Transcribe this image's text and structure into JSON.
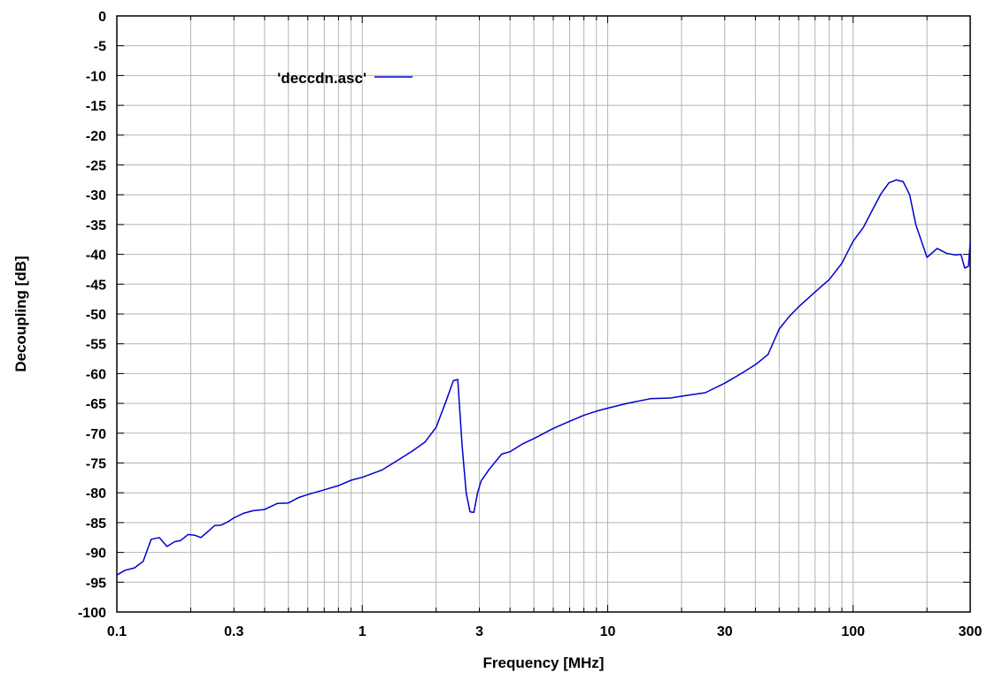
{
  "chart_data": {
    "type": "line",
    "title": "",
    "xlabel": "Frequency [MHz]",
    "ylabel": "Decoupling [dB]",
    "x_scale": "log",
    "xlim": [
      0.1,
      300
    ],
    "ylim": [
      -100,
      0
    ],
    "grid": true,
    "legend_position": "top-left",
    "x_ticks": [
      0.1,
      0.3,
      1,
      3,
      10,
      30,
      100,
      300
    ],
    "x_tick_labels": [
      "0.1",
      "0.3",
      "1",
      "3",
      "10",
      "30",
      "100",
      "300"
    ],
    "y_ticks": [
      0,
      -5,
      -10,
      -15,
      -20,
      -25,
      -30,
      -35,
      -40,
      -45,
      -50,
      -55,
      -60,
      -65,
      -70,
      -75,
      -80,
      -85,
      -90,
      -95,
      -100
    ],
    "y_tick_labels": [
      "0",
      "-5",
      "-10",
      "-15",
      "-20",
      "-25",
      "-30",
      "-35",
      "-40",
      "-45",
      "-50",
      "-55",
      "-60",
      "-65",
      "-70",
      "-75",
      "-80",
      "-85",
      "-90",
      "-95",
      "-100"
    ],
    "series": [
      {
        "name": "'deccdn.asc'",
        "color": "#0000cc",
        "x": [
          0.1,
          0.108,
          0.118,
          0.128,
          0.138,
          0.149,
          0.16,
          0.172,
          0.182,
          0.195,
          0.207,
          0.22,
          0.235,
          0.25,
          0.267,
          0.285,
          0.3,
          0.33,
          0.36,
          0.4,
          0.45,
          0.5,
          0.55,
          0.6,
          0.7,
          0.8,
          0.9,
          1.0,
          1.2,
          1.4,
          1.6,
          1.8,
          2.0,
          2.2,
          2.35,
          2.45,
          2.55,
          2.65,
          2.75,
          2.85,
          2.95,
          3.05,
          3.3,
          3.7,
          4.0,
          4.5,
          5.0,
          6.0,
          7.0,
          8.0,
          9.0,
          10.0,
          12.0,
          15.0,
          18.0,
          20.0,
          25.0,
          30.0,
          35.0,
          40.0,
          45.0,
          50.0,
          55.0,
          60.0,
          70.0,
          80.0,
          90.0,
          100.0,
          110.0,
          120.0,
          130.0,
          140.0,
          150.0,
          160.0,
          170.0,
          180.0,
          200.0,
          220.0,
          240.0,
          260.0,
          275.0,
          285.0,
          295.0,
          300.0
        ],
        "y": [
          -93.8,
          -93.0,
          -92.6,
          -91.5,
          -87.8,
          -87.5,
          -89.0,
          -88.2,
          -88.0,
          -87.0,
          -87.1,
          -87.5,
          -86.5,
          -85.5,
          -85.4,
          -84.8,
          -84.2,
          -83.4,
          -83.0,
          -82.8,
          -81.8,
          -81.7,
          -80.8,
          -80.3,
          -79.5,
          -78.8,
          -77.9,
          -77.4,
          -76.2,
          -74.5,
          -73.0,
          -71.5,
          -69.0,
          -64.5,
          -61.2,
          -61.0,
          -72.0,
          -80.0,
          -83.2,
          -83.3,
          -80.0,
          -78.0,
          -76.0,
          -73.5,
          -73.1,
          -71.8,
          -70.9,
          -69.2,
          -68.0,
          -67.0,
          -66.3,
          -65.8,
          -65.0,
          -64.2,
          -64.1,
          -63.8,
          -63.2,
          -61.6,
          -60.0,
          -58.5,
          -56.8,
          -52.5,
          -50.4,
          -48.8,
          -46.3,
          -44.2,
          -41.5,
          -37.8,
          -35.5,
          -32.5,
          -29.8,
          -28.0,
          -27.5,
          -27.8,
          -30.0,
          -35.0,
          -40.5,
          -39.0,
          -39.8,
          -40.1,
          -40.0,
          -42.3,
          -42.0,
          -38.0
        ]
      }
    ]
  }
}
